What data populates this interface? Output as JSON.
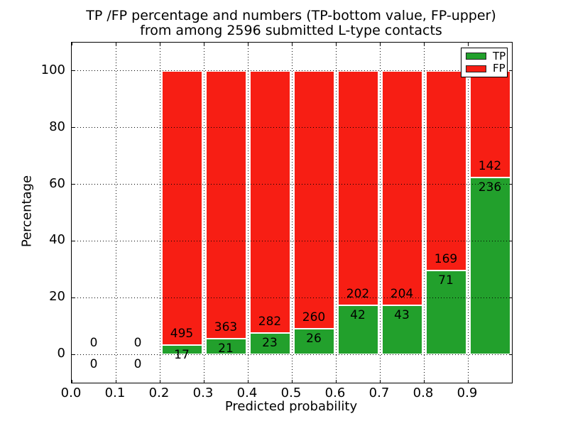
{
  "chart_data": {
    "type": "bar",
    "stacked": true,
    "title_line1": "TP /FP percentage and numbers (TP-bottom value, FP-upper)",
    "title_line2": "from among 2596 submitted L-type contacts",
    "xlabel": "Predicted probability",
    "ylabel": "Percentage",
    "xlim": [
      0.0,
      1.0
    ],
    "ylim": [
      -10,
      110
    ],
    "grid": "dotted, shown on both axes",
    "x_tick_labels": [
      "0.0",
      "0.1",
      "0.2",
      "0.3",
      "0.4",
      "0.5",
      "0.6",
      "0.7",
      "0.8",
      "0.9"
    ],
    "y_tick_labels": [
      "0",
      "20",
      "40",
      "60",
      "80",
      "100"
    ],
    "bin_width": 0.1,
    "bar_value_note": "numbers printed on bars: TP count below segment boundary, FP count above it; empty bins show 0 / 0 around baseline",
    "legend_position": "upper right",
    "legend": [
      {
        "label": "TP",
        "color": "#22a02c"
      },
      {
        "label": "FP",
        "color": "#f71e14"
      }
    ],
    "colors": {
      "tp": "#22a02c",
      "fp": "#f71e14",
      "bar_edge": "#ffffff"
    },
    "bins": [
      {
        "x_start": 0.0,
        "tp": 0,
        "fp": 0,
        "tp_pct": 0.0
      },
      {
        "x_start": 0.1,
        "tp": 0,
        "fp": 0,
        "tp_pct": 0.0
      },
      {
        "x_start": 0.2,
        "tp": 17,
        "fp": 495,
        "tp_pct": 3.3
      },
      {
        "x_start": 0.3,
        "tp": 21,
        "fp": 363,
        "tp_pct": 5.5
      },
      {
        "x_start": 0.4,
        "tp": 23,
        "fp": 282,
        "tp_pct": 7.5
      },
      {
        "x_start": 0.5,
        "tp": 26,
        "fp": 260,
        "tp_pct": 9.1
      },
      {
        "x_start": 0.6,
        "tp": 42,
        "fp": 202,
        "tp_pct": 17.2
      },
      {
        "x_start": 0.7,
        "tp": 43,
        "fp": 204,
        "tp_pct": 17.4
      },
      {
        "x_start": 0.8,
        "tp": 71,
        "fp": 169,
        "tp_pct": 29.6
      },
      {
        "x_start": 0.9,
        "tp": 236,
        "fp": 142,
        "tp_pct": 62.4
      }
    ]
  }
}
